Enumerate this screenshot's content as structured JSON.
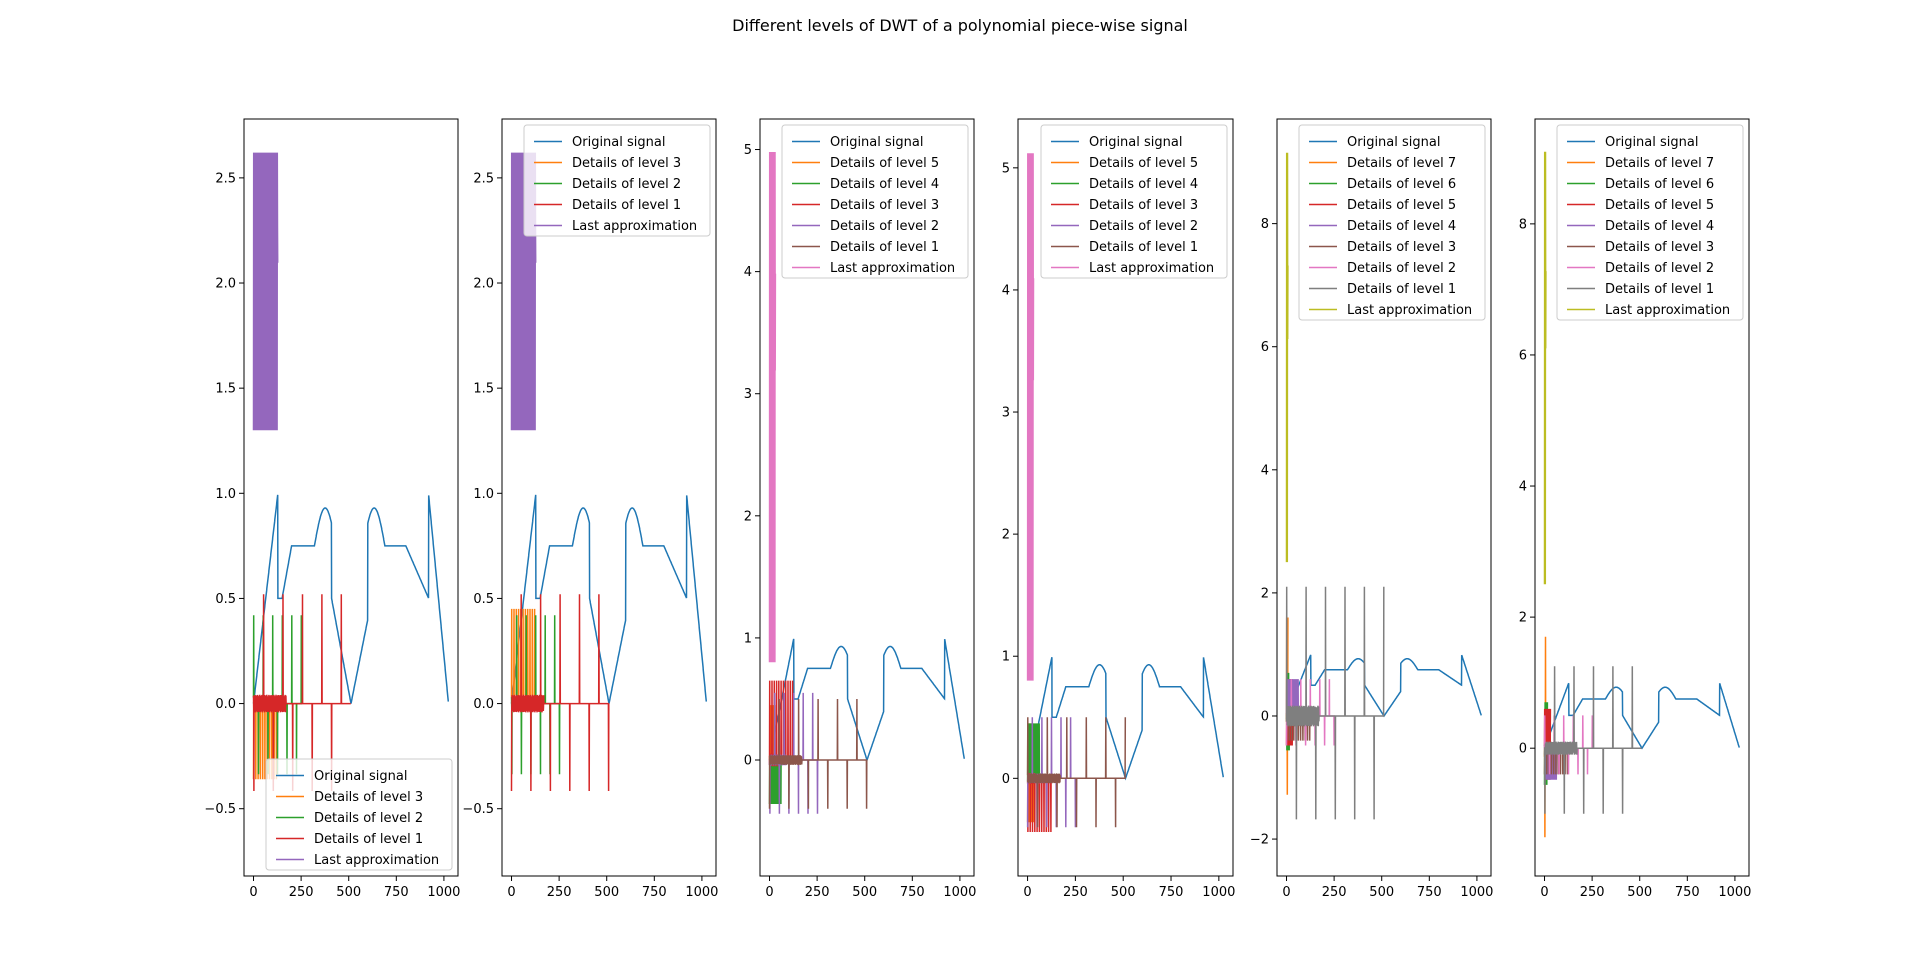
{
  "title": "Different levels of DWT of a polynomial piece-wise signal",
  "colors": [
    "#1f77b4",
    "#ff7f0e",
    "#2ca02c",
    "#d62728",
    "#9467bd",
    "#8c564b",
    "#e377c2",
    "#7f7f7f",
    "#bcbd22"
  ],
  "chart_data": [
    {
      "type": "line",
      "xlim": [
        -50,
        1074
      ],
      "ylim": [
        -0.82,
        2.78
      ],
      "xticks": [
        0,
        250,
        500,
        750,
        1000
      ],
      "yticks": [
        -0.5,
        0.0,
        0.5,
        1.0,
        1.5,
        2.0,
        2.5
      ],
      "ytick_labels": [
        "−0.5",
        "0.0",
        "0.5",
        "1.0",
        "1.5",
        "2.0",
        "2.5"
      ],
      "legend_position": "lower-right",
      "levels": [
        3,
        2,
        1
      ],
      "approx": {
        "len": 128,
        "max": 2.62,
        "min": 1.3
      },
      "details": [
        {
          "len": 128,
          "amp": 0.45
        },
        {
          "len": 256,
          "amp": 0.42
        },
        {
          "len": 512,
          "amp": 0.52
        }
      ],
      "series": [
        {
          "name": "Original signal"
        },
        {
          "name": "Details of level 3"
        },
        {
          "name": "Details of level 2"
        },
        {
          "name": "Details of level 1"
        },
        {
          "name": "Last approximation"
        }
      ]
    },
    {
      "type": "line",
      "xlim": [
        -50,
        1074
      ],
      "ylim": [
        -0.82,
        2.78
      ],
      "xticks": [
        0,
        250,
        500,
        750,
        1000
      ],
      "yticks": [
        -0.5,
        0.0,
        0.5,
        1.0,
        1.5,
        2.0,
        2.5
      ],
      "ytick_labels": [
        "−0.5",
        "0.0",
        "0.5",
        "1.0",
        "1.5",
        "2.0",
        "2.5"
      ],
      "legend_position": "upper-right",
      "levels": [
        3,
        2,
        1
      ],
      "approx": {
        "len": 128,
        "max": 2.62,
        "min": 1.3
      },
      "details": [
        {
          "len": 128,
          "amp": 0.45
        },
        {
          "len": 256,
          "amp": 0.42
        },
        {
          "len": 512,
          "amp": 0.52
        }
      ],
      "series": [
        {
          "name": "Original signal"
        },
        {
          "name": "Details of level 3"
        },
        {
          "name": "Details of level 2"
        },
        {
          "name": "Details of level 1"
        },
        {
          "name": "Last approximation"
        }
      ]
    },
    {
      "type": "line",
      "xlim": [
        -50,
        1074
      ],
      "ylim": [
        -0.95,
        5.25
      ],
      "xticks": [
        0,
        250,
        500,
        750,
        1000
      ],
      "yticks": [
        0,
        1,
        2,
        3,
        4,
        5
      ],
      "ytick_labels": [
        "0",
        "1",
        "2",
        "3",
        "4",
        "5"
      ],
      "legend_position": "upper-right",
      "levels": [
        5,
        4,
        3,
        2,
        1
      ],
      "approx": {
        "len": 32,
        "max": 4.98,
        "min": 0.8
      },
      "details": [
        {
          "len": 32,
          "amp": 0.45
        },
        {
          "len": 64,
          "amp": 0.45
        },
        {
          "len": 128,
          "amp": 0.65
        },
        {
          "len": 256,
          "amp": 0.55
        },
        {
          "len": 512,
          "amp": 0.5
        }
      ],
      "series": [
        {
          "name": "Original signal"
        },
        {
          "name": "Details of level 5"
        },
        {
          "name": "Details of level 4"
        },
        {
          "name": "Details of level 3"
        },
        {
          "name": "Details of level 2"
        },
        {
          "name": "Details of level 1"
        },
        {
          "name": "Last approximation"
        }
      ]
    },
    {
      "type": "line",
      "xlim": [
        -50,
        1074
      ],
      "ylim": [
        -0.8,
        5.4
      ],
      "xticks": [
        0,
        250,
        500,
        750,
        1000
      ],
      "yticks": [
        0,
        1,
        2,
        3,
        4,
        5
      ],
      "ytick_labels": [
        "0",
        "1",
        "2",
        "3",
        "4",
        "5"
      ],
      "legend_position": "upper-right",
      "levels": [
        5,
        4,
        3,
        2,
        1
      ],
      "approx": {
        "len": 32,
        "max": 5.12,
        "min": 0.8
      },
      "details": [
        {
          "len": 32,
          "amp": 0.45
        },
        {
          "len": 64,
          "amp": 0.45
        },
        {
          "len": 128,
          "amp": 0.55
        },
        {
          "len": 256,
          "amp": 0.5
        },
        {
          "len": 512,
          "amp": 0.5
        }
      ],
      "series": [
        {
          "name": "Original signal"
        },
        {
          "name": "Details of level 5"
        },
        {
          "name": "Details of level 4"
        },
        {
          "name": "Details of level 3"
        },
        {
          "name": "Details of level 2"
        },
        {
          "name": "Details of level 1"
        },
        {
          "name": "Last approximation"
        }
      ]
    },
    {
      "type": "line",
      "xlim": [
        -50,
        1074
      ],
      "ylim": [
        -2.6,
        9.7
      ],
      "xticks": [
        0,
        250,
        500,
        750,
        1000
      ],
      "yticks": [
        -2,
        0,
        2,
        4,
        6,
        8
      ],
      "ytick_labels": [
        "−2",
        "0",
        "2",
        "4",
        "6",
        "8"
      ],
      "legend_position": "upper-right",
      "levels": [
        7,
        6,
        5,
        4,
        3,
        2,
        1
      ],
      "approx": {
        "len": 8,
        "max": 9.15,
        "min": 2.5
      },
      "details": [
        {
          "len": 8,
          "amp": 1.6
        },
        {
          "len": 16,
          "amp": 0.7
        },
        {
          "len": 32,
          "amp": 0.6
        },
        {
          "len": 64,
          "amp": 0.6
        },
        {
          "len": 128,
          "amp": 0.5
        },
        {
          "len": 256,
          "amp": 0.6
        },
        {
          "len": 512,
          "amp": 2.1
        }
      ],
      "series": [
        {
          "name": "Original signal"
        },
        {
          "name": "Details of level 7"
        },
        {
          "name": "Details of level 6"
        },
        {
          "name": "Details of level 5"
        },
        {
          "name": "Details of level 4"
        },
        {
          "name": "Details of level 3"
        },
        {
          "name": "Details of level 2"
        },
        {
          "name": "Details of level 1"
        },
        {
          "name": "Last approximation"
        }
      ]
    },
    {
      "type": "line",
      "xlim": [
        -50,
        1074
      ],
      "ylim": [
        -1.95,
        9.6
      ],
      "xticks": [
        0,
        250,
        500,
        750,
        1000
      ],
      "yticks": [
        0,
        2,
        4,
        6,
        8
      ],
      "ytick_labels": [
        "0",
        "2",
        "4",
        "6",
        "8"
      ],
      "legend_position": "upper-right",
      "levels": [
        7,
        6,
        5,
        4,
        3,
        2,
        1
      ],
      "approx": {
        "len": 8,
        "max": 9.1,
        "min": 2.5
      },
      "details": [
        {
          "len": 8,
          "amp": 1.7
        },
        {
          "len": 16,
          "amp": 0.7
        },
        {
          "len": 32,
          "amp": 0.6
        },
        {
          "len": 64,
          "amp": 0.6
        },
        {
          "len": 128,
          "amp": 0.5
        },
        {
          "len": 256,
          "amp": 0.5
        },
        {
          "len": 512,
          "amp": 1.25
        }
      ],
      "series": [
        {
          "name": "Original signal"
        },
        {
          "name": "Details of level 7"
        },
        {
          "name": "Details of level 6"
        },
        {
          "name": "Details of level 5"
        },
        {
          "name": "Details of level 4"
        },
        {
          "name": "Details of level 3"
        },
        {
          "name": "Details of level 2"
        },
        {
          "name": "Details of level 1"
        },
        {
          "name": "Last approximation"
        }
      ]
    }
  ]
}
